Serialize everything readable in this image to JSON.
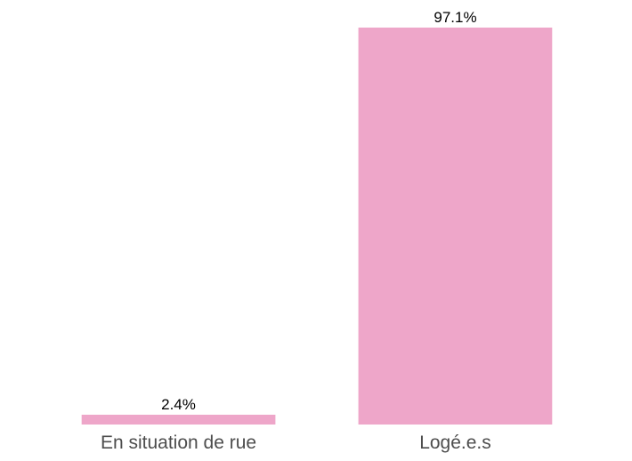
{
  "chart_data": {
    "type": "bar",
    "categories": [
      "En situation de rue",
      "Logé.e.s"
    ],
    "values": [
      2.4,
      97.1
    ],
    "value_labels": [
      "2.4%",
      "97.1%"
    ],
    "title": "",
    "xlabel": "",
    "ylabel": "",
    "ylim": [
      0,
      97.1
    ],
    "grid": false,
    "legend": "none",
    "colors": {
      "bar": "#eea6c9",
      "data_label": "#000000",
      "tick_label": "#4d4d4d",
      "background": "#ffffff"
    }
  }
}
